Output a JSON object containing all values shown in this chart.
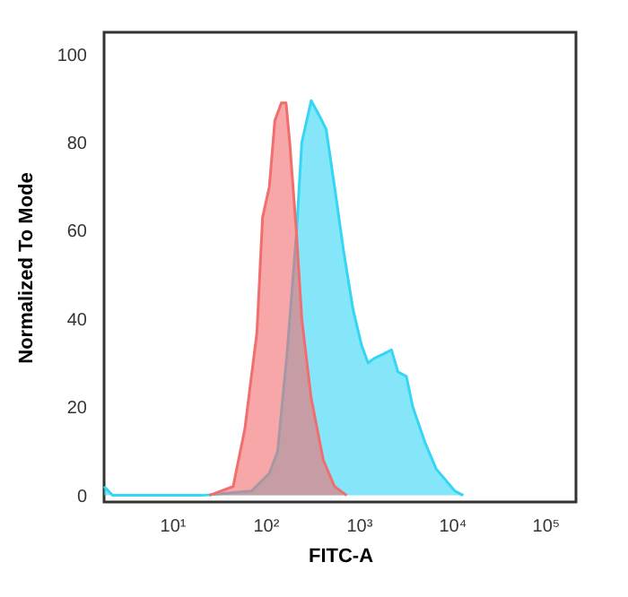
{
  "chart_data": {
    "type": "area",
    "xlabel": "FITC-A",
    "ylabel": "Normalized To Mode",
    "log": "x",
    "xlim": [
      1.86,
      213000
    ],
    "ylim": [
      -1.5,
      105
    ],
    "xticks": [
      {
        "value": 10,
        "label": "10¹"
      },
      {
        "value": 100,
        "label": "10²"
      },
      {
        "value": 1000,
        "label": "10³"
      },
      {
        "value": 10000,
        "label": "10⁴"
      },
      {
        "value": 100000,
        "label": "10⁵"
      }
    ],
    "yticks": [
      0,
      20,
      40,
      60,
      80,
      100
    ],
    "grid": false,
    "series": [
      {
        "color": "#33d6f5",
        "x": [
          1.86,
          2.3,
          21,
          71,
          110,
          135,
          170,
          214,
          245,
          309,
          380,
          447,
          550,
          692,
          871,
          1072,
          1259,
          1445,
          1820,
          2239,
          2630,
          3236,
          3802,
          5129,
          6761,
          10715,
          13183
        ],
        "values": [
          2,
          0,
          0,
          1,
          5,
          10,
          32,
          59,
          80,
          89.5,
          86,
          83,
          70,
          55,
          42,
          34,
          30,
          31,
          32,
          33,
          28,
          27,
          20,
          12,
          6,
          1,
          0
        ]
      },
      {
        "color": "#f26d6d",
        "x": [
          25,
          45,
          60,
          81,
          93,
          110,
          126,
          148,
          166,
          182,
          214,
          245,
          309,
          417,
          550,
          741
        ],
        "values": [
          0,
          2,
          15,
          37,
          63,
          70,
          85,
          89,
          89,
          80,
          60,
          40,
          22,
          8,
          2,
          0
        ]
      }
    ]
  }
}
